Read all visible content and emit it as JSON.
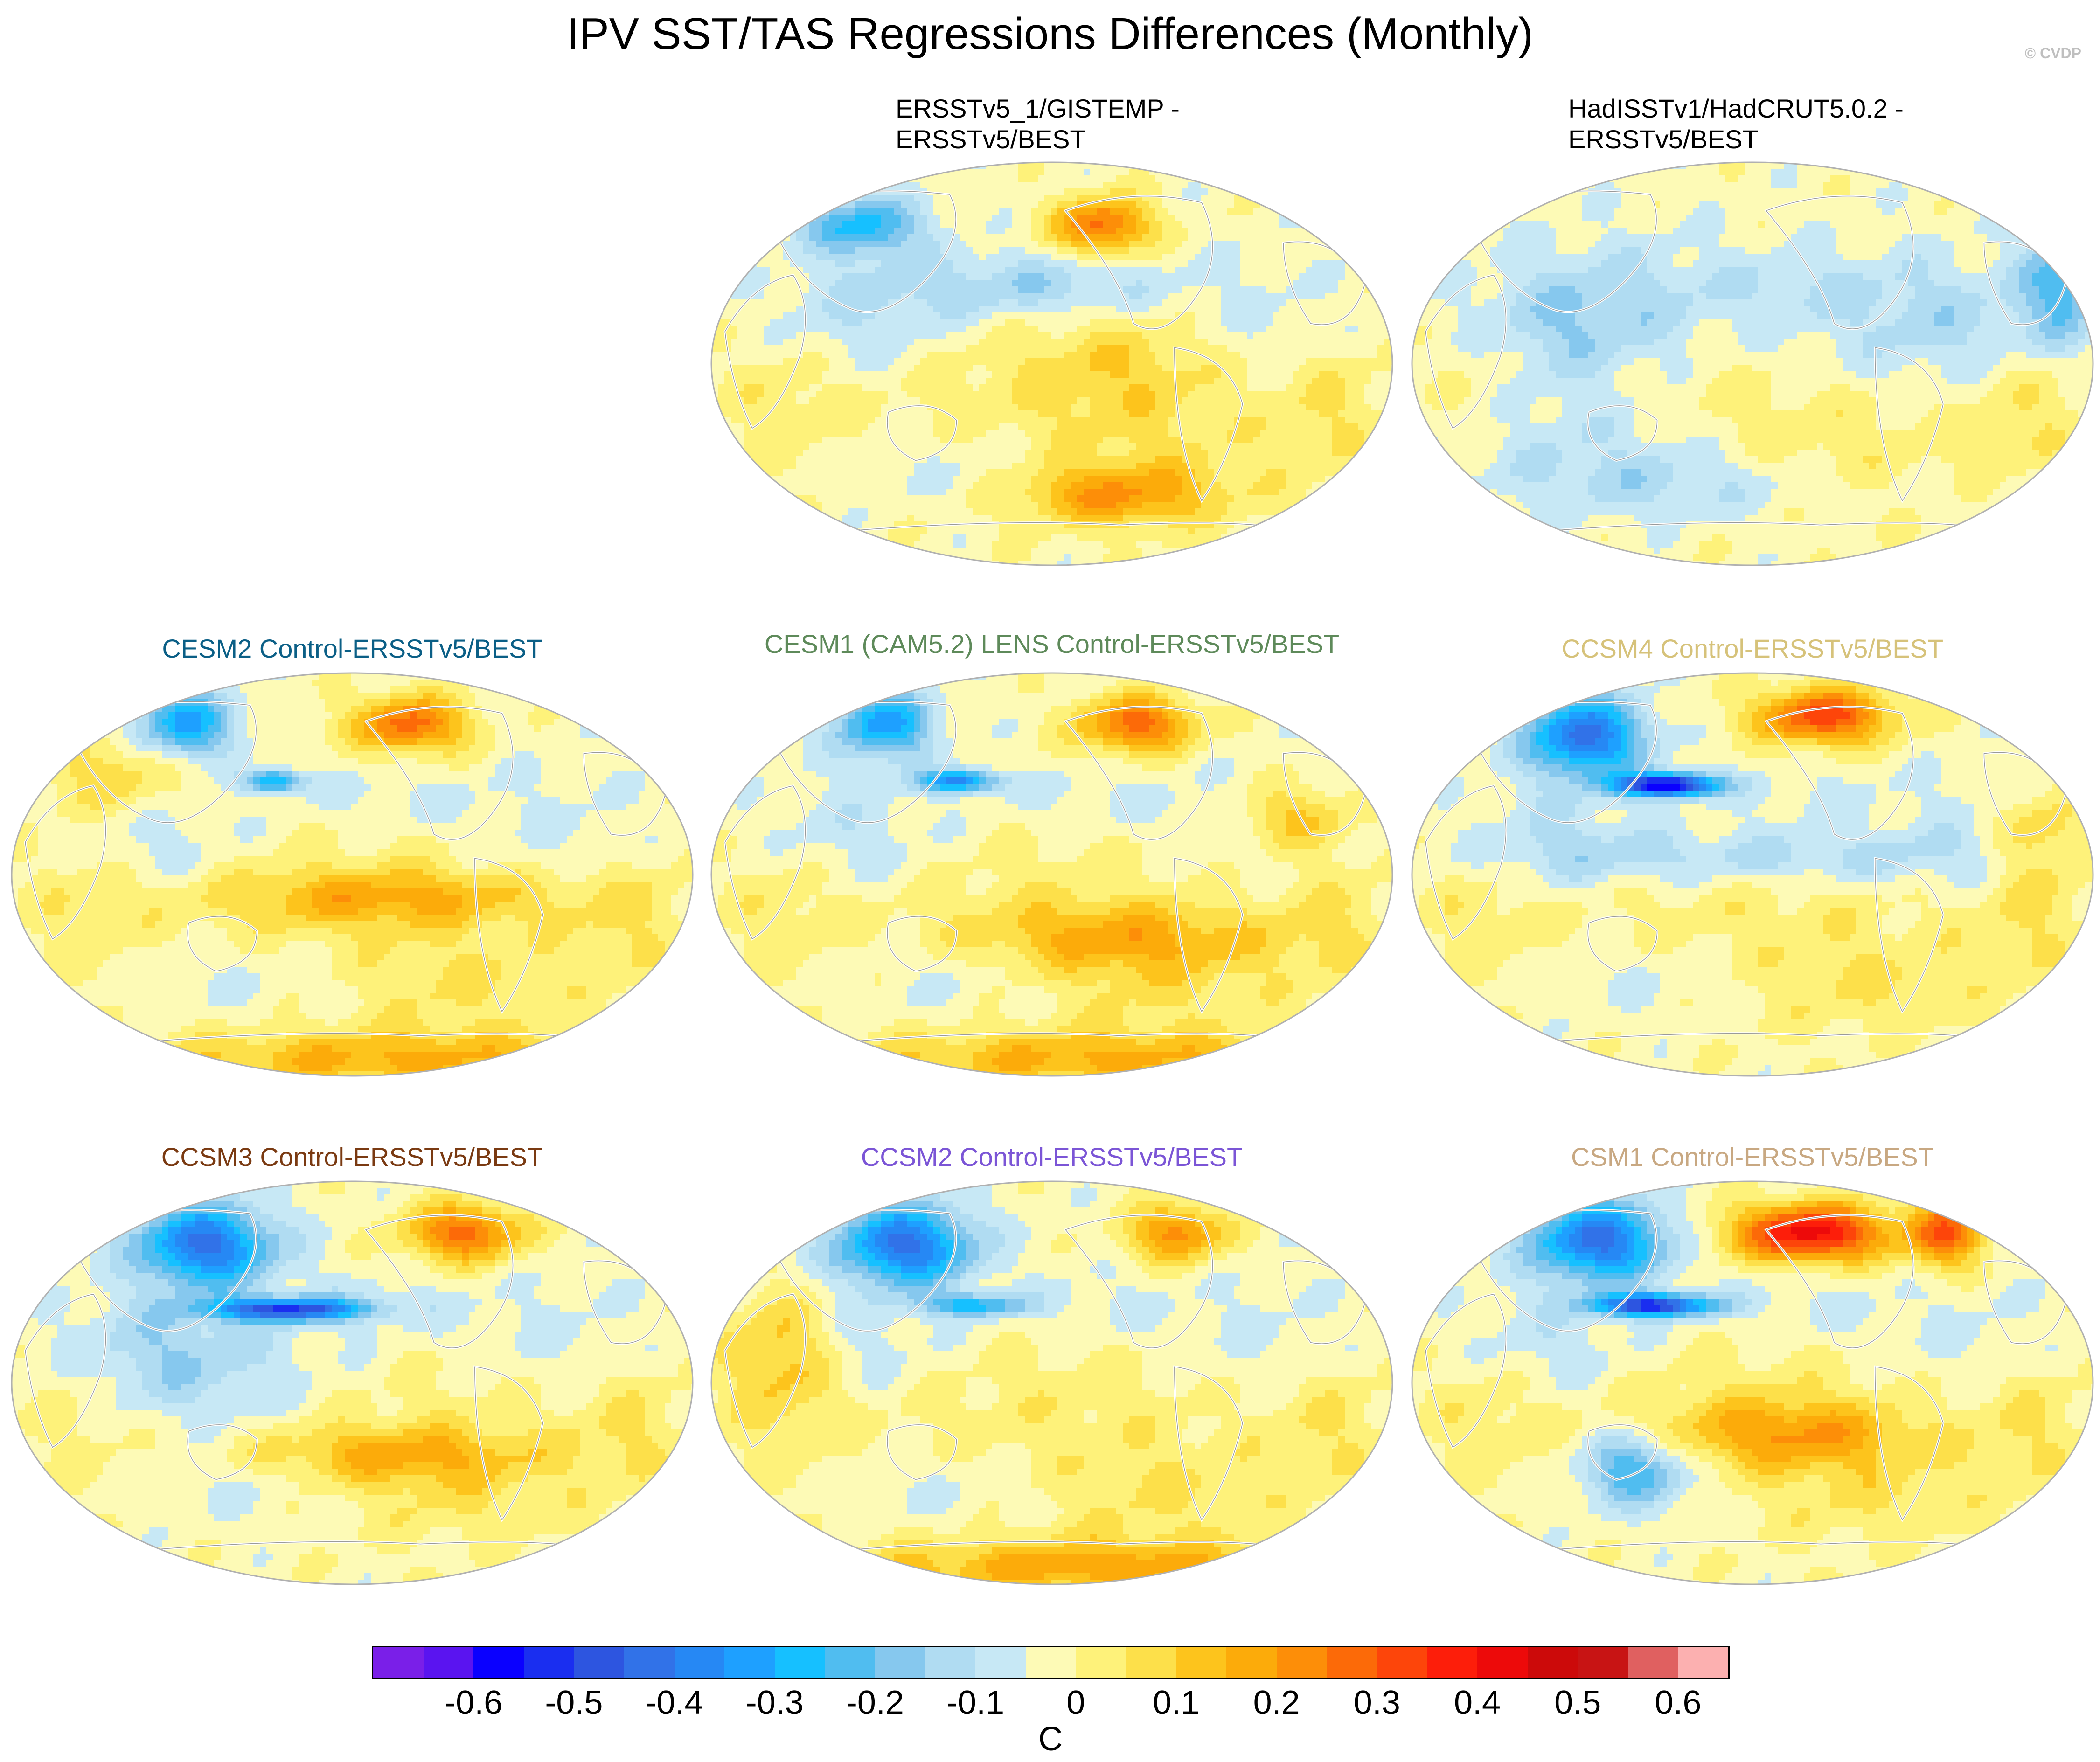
{
  "title": "IPV SST/TAS Regressions Differences (Monthly)",
  "credit": "© CVDP",
  "panels": [
    {
      "title": "ERSSTv5_1/GISTEMP - ERSSTv5/BEST",
      "line1": "ERSSTv5_1/GISTEMP -",
      "line2": "ERSSTv5/BEST",
      "color": "#000000"
    },
    {
      "title": "HadISSTv1/HadCRUT5.0.2 - ERSSTv5/BEST",
      "line1": "HadISSTv1/HadCRUT5.0.2 -",
      "line2": "ERSSTv5/BEST",
      "color": "#000000"
    },
    {
      "title": "CESM2 Control-ERSSTv5/BEST",
      "color": "#0b5f86"
    },
    {
      "title": "CESM1 (CAM5.2) LENS Control-ERSSTv5/BEST",
      "color": "#5e8a5a"
    },
    {
      "title": "CCSM4 Control-ERSSTv5/BEST",
      "color": "#d6c27a"
    },
    {
      "title": "CCSM3 Control-ERSSTv5/BEST",
      "color": "#7a3a12"
    },
    {
      "title": "CCSM2 Control-ERSSTv5/BEST",
      "color": "#7b55d6"
    },
    {
      "title": "CSM1 Control-ERSSTv5/BEST",
      "color": "#c8a882"
    }
  ],
  "chart_data": {
    "type": "heatmap",
    "projection": "Robinson (global, Pacific-centered)",
    "variable": "IPV SST/TAS regression difference",
    "units": "C",
    "colorbar": {
      "levels": [
        -0.65,
        -0.6,
        -0.55,
        -0.5,
        -0.45,
        -0.4,
        -0.35,
        -0.3,
        -0.25,
        -0.2,
        -0.15,
        -0.1,
        -0.05,
        0,
        0.05,
        0.1,
        0.15,
        0.2,
        0.25,
        0.3,
        0.35,
        0.4,
        0.45,
        0.5,
        0.55,
        0.6,
        0.65
      ],
      "tick_labels": [
        "-0.6",
        "-0.5",
        "-0.4",
        "-0.3",
        "-0.2",
        "-0.1",
        "0",
        "0.1",
        "0.2",
        "0.3",
        "0.4",
        "0.5",
        "0.6"
      ],
      "colors": [
        "#7a1fe8",
        "#5a14f0",
        "#0a00ff",
        "#1a2ef0",
        "#2d55e0",
        "#3172e8",
        "#2688f4",
        "#1ea0ff",
        "#16c0ff",
        "#50bdf0",
        "#86c8ee",
        "#b0dcf2",
        "#c7e8f5",
        "#fdfab6",
        "#fef27a",
        "#fde04a",
        "#fdc41c",
        "#fcab0a",
        "#fd8e08",
        "#fc6a08",
        "#fd450a",
        "#fd1e0a",
        "#ed0a0a",
        "#cc0a0a",
        "#c81414",
        "#e06060",
        "#fcb0b0"
      ]
    }
  }
}
